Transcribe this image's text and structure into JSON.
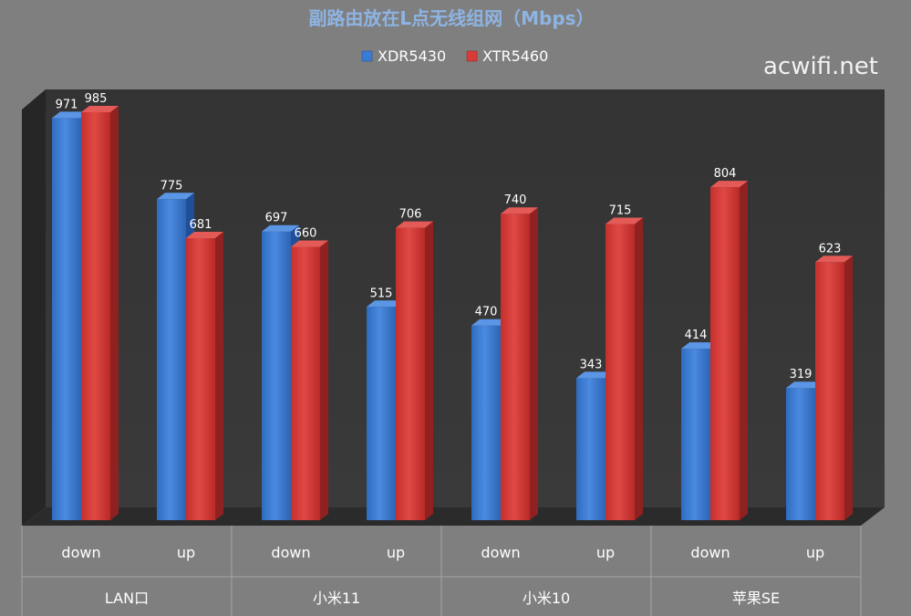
{
  "chart_data": {
    "type": "bar",
    "title": "副路由放在L点无线组网（Mbps）",
    "watermark": "acwifi.net",
    "groups": [
      "LAN口",
      "小米11",
      "小米10",
      "苹果SE"
    ],
    "sub_categories": [
      "down",
      "up",
      "down",
      "up",
      "down",
      "up",
      "down",
      "up"
    ],
    "series": [
      {
        "name": "XDR5430",
        "color": "#3a7bd5",
        "values": [
          971,
          775,
          697,
          515,
          470,
          343,
          414,
          319
        ]
      },
      {
        "name": "XTR5460",
        "color": "#d93b38",
        "values": [
          985,
          681,
          660,
          706,
          740,
          715,
          804,
          623
        ]
      }
    ],
    "ylim": [
      0,
      1000
    ],
    "grid": false,
    "legend": "top-center"
  }
}
